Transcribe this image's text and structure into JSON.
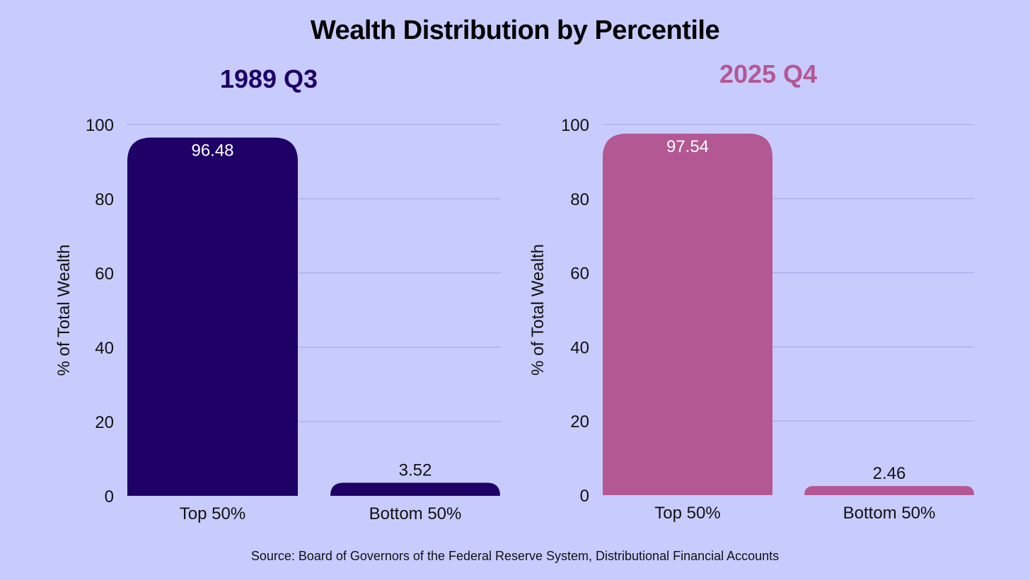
{
  "chart_data": {
    "type": "bar",
    "title": "Wealth Distribution by Percentile",
    "source": "Source: Board of Governors of the Federal Reserve System, Distributional Financial Accounts",
    "panels": [
      {
        "title": "1989 Q3",
        "color": "#1e0066",
        "categories": [
          "Top 50%",
          "Bottom 50%"
        ],
        "values": [
          96.48,
          3.52
        ],
        "value_labels": [
          "96.48",
          "3.52"
        ],
        "ylabel": "% of Total Wealth",
        "ylim": [
          0,
          100
        ],
        "yticks": [
          "0",
          "20",
          "40",
          "60",
          "80",
          "100"
        ],
        "grid": true
      },
      {
        "title": "2025 Q4",
        "color": "#b45894",
        "categories": [
          "Top 50%",
          "Bottom 50%"
        ],
        "values": [
          97.54,
          2.46
        ],
        "value_labels": [
          "97.54",
          "2.46"
        ],
        "ylabel": "% of Total Wealth",
        "ylim": [
          0,
          100
        ],
        "yticks": [
          "0",
          "20",
          "40",
          "60",
          "80",
          "100"
        ],
        "grid": true
      }
    ]
  }
}
